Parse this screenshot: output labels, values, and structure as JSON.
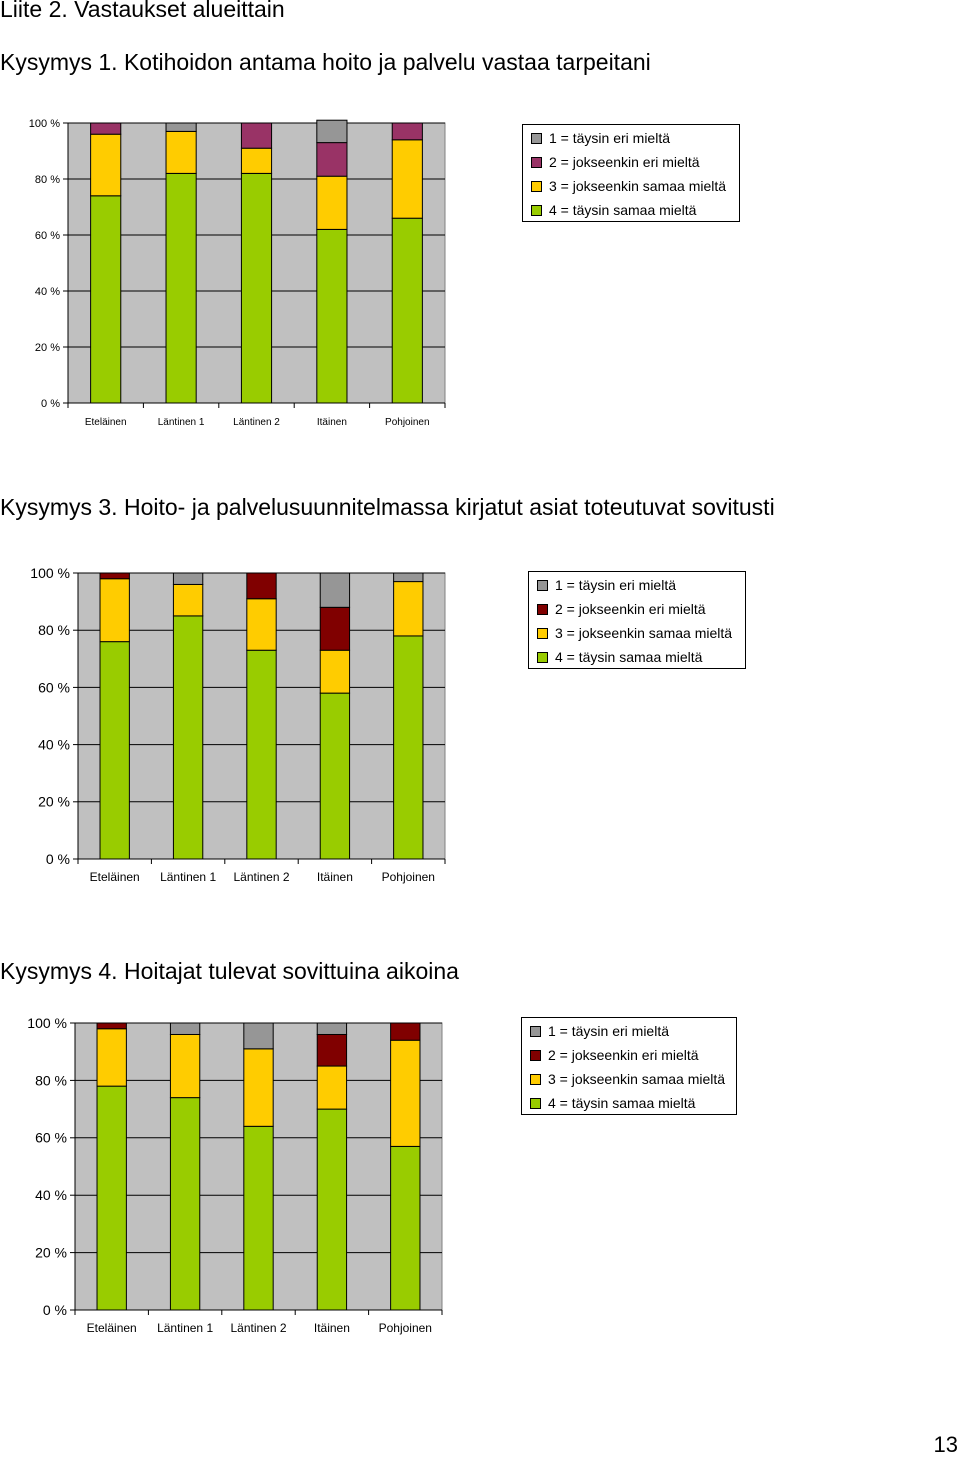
{
  "page": {
    "title": "Liite 2. Vastaukset alueittain",
    "page_number": "13"
  },
  "colors": {
    "plot_bg": "#c0c0c0",
    "grid": "#000000",
    "green": "#99cc00",
    "yellow": "#ffcc00",
    "grey": "#969696",
    "plum": "#993366",
    "darkred": "#800000"
  },
  "chart_data": [
    {
      "type": "bar",
      "stacked": true,
      "title": "Kysymys 1. Kotihoidon antama hoito ja palvelu vastaa tarpeitani",
      "categories": [
        "Eteläinen",
        "Läntinen 1",
        "Läntinen 2",
        "Itäinen",
        "Pohjoinen"
      ],
      "y_ticks": [
        "0 %",
        "20 %",
        "40 %",
        "60 %",
        "80 %",
        "100 %"
      ],
      "ylim": [
        0,
        100
      ],
      "grid": true,
      "legend_position": "right",
      "series": [
        {
          "name": "4 = täysin samaa mieltä",
          "color": "#99cc00",
          "values": [
            74,
            82,
            82,
            62,
            66
          ]
        },
        {
          "name": "3 = jokseenkin samaa mieltä",
          "color": "#ffcc00",
          "values": [
            22,
            15,
            9,
            19,
            28
          ]
        },
        {
          "name": "2 = jokseenkin eri mieltä",
          "color": "#993366",
          "values": [
            4,
            0,
            9,
            12,
            6
          ]
        },
        {
          "name": "1 = täysin eri mieltä",
          "color": "#969696",
          "values": [
            0,
            3,
            0,
            8,
            0
          ]
        }
      ]
    },
    {
      "type": "bar",
      "stacked": true,
      "title": "Kysymys 3. Hoito- ja palvelusuunnitelmassa kirjatut asiat toteutuvat sovitusti",
      "categories": [
        "Eteläinen",
        "Läntinen 1",
        "Läntinen 2",
        "Itäinen",
        "Pohjoinen"
      ],
      "y_ticks": [
        "0 %",
        "20 %",
        "40 %",
        "60 %",
        "80 %",
        "100 %"
      ],
      "ylim": [
        0,
        100
      ],
      "grid": true,
      "legend_position": "right",
      "series": [
        {
          "name": "4 = täysin samaa mieltä",
          "color": "#99cc00",
          "values": [
            76,
            85,
            73,
            58,
            78
          ]
        },
        {
          "name": "3 = jokseenkin samaa mieltä",
          "color": "#ffcc00",
          "values": [
            22,
            11,
            18,
            15,
            19
          ]
        },
        {
          "name": "2 = jokseenkin eri mieltä",
          "color": "#800000",
          "values": [
            2,
            0,
            9,
            15,
            0
          ]
        },
        {
          "name": "1 = täysin eri mieltä",
          "color": "#969696",
          "values": [
            0,
            4,
            0,
            12,
            3
          ]
        }
      ]
    },
    {
      "type": "bar",
      "stacked": true,
      "title": "Kysymys 4. Hoitajat tulevat sovittuina aikoina",
      "categories": [
        "Eteläinen",
        "Läntinen 1",
        "Läntinen 2",
        "Itäinen",
        "Pohjoinen"
      ],
      "y_ticks": [
        "0 %",
        "20 %",
        "40 %",
        "60 %",
        "80 %",
        "100 %"
      ],
      "ylim": [
        0,
        100
      ],
      "grid": true,
      "legend_position": "right",
      "series": [
        {
          "name": "4 = täysin samaa mieltä",
          "color": "#99cc00",
          "values": [
            78,
            74,
            64,
            70,
            57
          ]
        },
        {
          "name": "3 = jokseenkin samaa mieltä",
          "color": "#ffcc00",
          "values": [
            20,
            22,
            27,
            15,
            37
          ]
        },
        {
          "name": "2 = jokseenkin eri mieltä",
          "color": "#800000",
          "values": [
            2,
            0,
            0,
            11,
            6
          ]
        },
        {
          "name": "1 = täysin eri mieltä",
          "color": "#969696",
          "values": [
            0,
            4,
            9,
            4,
            0
          ]
        }
      ]
    }
  ]
}
